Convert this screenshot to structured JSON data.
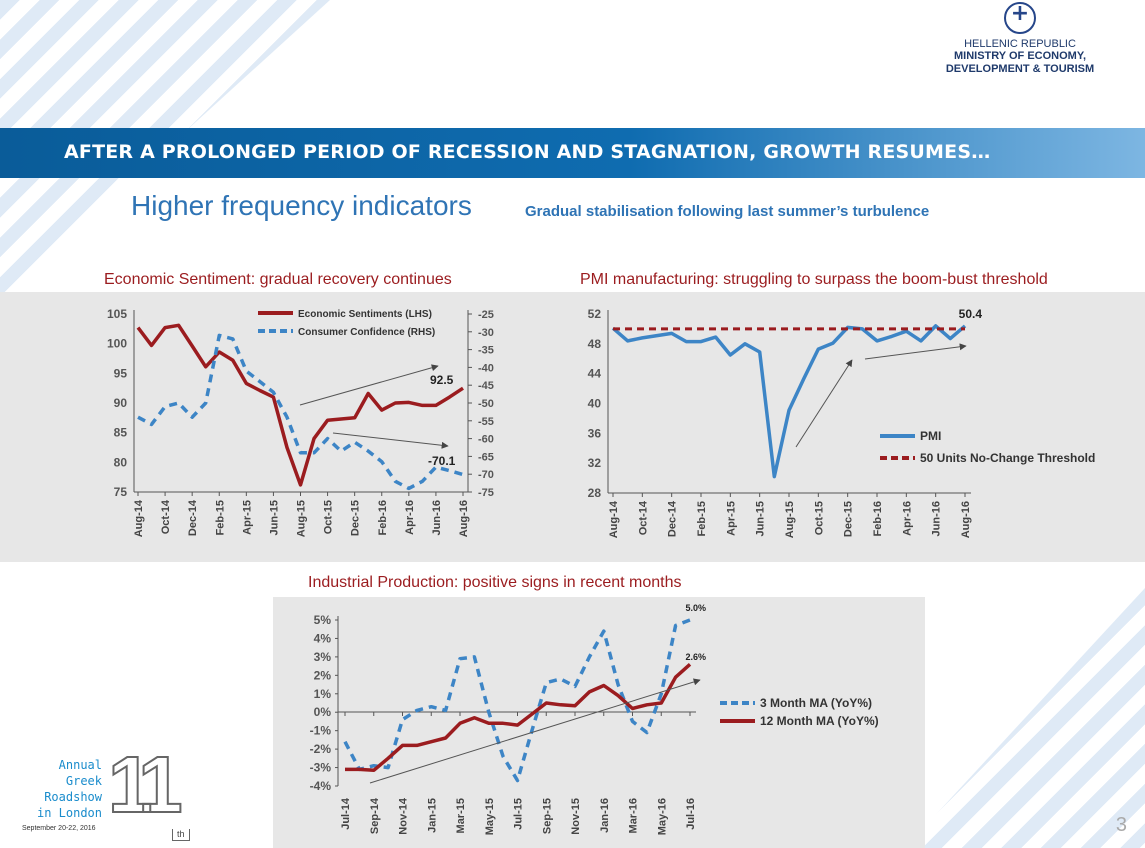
{
  "header": {
    "logo_line1": "HELLENIC REPUBLIC",
    "logo_line2": "MINISTRY OF ECONOMY,",
    "logo_line3": "DEVELOPMENT & TOURISM"
  },
  "banner": "AFTER A PROLONGED PERIOD OF RECESSION AND STAGNATION, GROWTH RESUMES…",
  "subtitle": "Higher frequency indicators",
  "subtitle_note": "Gradual stabilisation following last summer’s turbulence",
  "footer": {
    "event_lines": [
      "Annual",
      "Greek",
      "Roadshow",
      "in London"
    ],
    "event_date": "September 20-22, 2016",
    "edition": "11",
    "edition_suffix": "th",
    "page_number": "3"
  },
  "colors": {
    "red": "#9b1c1f",
    "blue": "#3d85c6",
    "banner": "#0a5c99"
  },
  "chart_data": [
    {
      "type": "line",
      "title": "Economic Sentiment: gradual recovery continues",
      "x": [
        "Aug-14",
        "Sep-14",
        "Oct-14",
        "Nov-14",
        "Dec-14",
        "Jan-15",
        "Feb-15",
        "Mar-15",
        "Apr-15",
        "May-15",
        "Jun-15",
        "Jul-15",
        "Aug-15",
        "Sep-15",
        "Oct-15",
        "Nov-15",
        "Dec-15",
        "Jan-16",
        "Feb-16",
        "Mar-16",
        "Apr-16",
        "May-16",
        "Jun-16",
        "Jul-16",
        "Aug-16"
      ],
      "xtick_labels": [
        "Aug-14",
        "Oct-14",
        "Dec-14",
        "Feb-15",
        "Apr-15",
        "Jun-15",
        "Aug-15",
        "Oct-15",
        "Dec-15",
        "Feb-16",
        "Apr-16",
        "Jun-16",
        "Aug-16"
      ],
      "ylim": [
        75,
        105
      ],
      "yticks": [
        75,
        80,
        85,
        90,
        95,
        100,
        105
      ],
      "y2lim": [
        -75,
        -25
      ],
      "y2ticks": [
        -75,
        -70,
        -65,
        -60,
        -55,
        -50,
        -45,
        -40,
        -35,
        -30,
        -25
      ],
      "legend": "top-right",
      "series": [
        {
          "name": "Economic Sentiments (LHS)",
          "axis": "left",
          "style": "solid",
          "color": "#9b1c1f",
          "values": [
            102.7,
            99.7,
            102.7,
            103.1,
            99.6,
            96.1,
            98.6,
            97.2,
            93.3,
            92.1,
            91.0,
            82.5,
            76.2,
            84.0,
            87.1,
            87.3,
            87.5,
            91.6,
            88.8,
            90.0,
            90.1,
            89.6,
            89.6,
            91.0,
            92.5
          ]
        },
        {
          "name": "Consumer Confidence (RHS)",
          "axis": "right",
          "style": "dashed",
          "color": "#3d85c6",
          "values": [
            -54,
            -56,
            -51,
            -50,
            -54,
            -50,
            -31,
            -32,
            -41,
            -44,
            -47,
            -54,
            -64,
            -64,
            -60,
            -63.5,
            -61,
            -63.5,
            -66.5,
            -72,
            -74,
            -72,
            -68,
            -69,
            -70.1
          ]
        }
      ],
      "annotations": [
        "92.5",
        "-70.1"
      ]
    },
    {
      "type": "line",
      "title": "PMI manufacturing: struggling to surpass the boom-bust threshold",
      "x": [
        "Aug-14",
        "Sep-14",
        "Oct-14",
        "Nov-14",
        "Dec-14",
        "Jan-15",
        "Feb-15",
        "Mar-15",
        "Apr-15",
        "May-15",
        "Jun-15",
        "Jul-15",
        "Aug-15",
        "Sep-15",
        "Oct-15",
        "Nov-15",
        "Dec-15",
        "Jan-16",
        "Feb-16",
        "Mar-16",
        "Apr-16",
        "May-16",
        "Jun-16",
        "Jul-16",
        "Aug-16"
      ],
      "xtick_labels": [
        "Aug-14",
        "Oct-14",
        "Dec-14",
        "Feb-15",
        "Apr-15",
        "Jun-15",
        "Aug-15",
        "Oct-15",
        "Dec-15",
        "Feb-16",
        "Apr-16",
        "Jun-16",
        "Aug-16"
      ],
      "ylim": [
        28,
        52
      ],
      "yticks": [
        28,
        32,
        36,
        40,
        44,
        48,
        52
      ],
      "legend": "bottom-right",
      "series": [
        {
          "name": "PMI",
          "style": "solid",
          "color": "#3d85c6",
          "values": [
            50.1,
            48.4,
            48.8,
            49.1,
            49.4,
            48.3,
            48.3,
            48.9,
            46.5,
            48.0,
            46.9,
            30.2,
            39.1,
            43.3,
            47.3,
            48.1,
            50.2,
            50.0,
            48.4,
            49.0,
            49.7,
            48.4,
            50.4,
            48.7,
            50.4
          ]
        },
        {
          "name": "50 Units No-Change Threshold",
          "style": "dashed",
          "color": "#9b1c1f",
          "values": [
            50,
            50,
            50,
            50,
            50,
            50,
            50,
            50,
            50,
            50,
            50,
            50,
            50,
            50,
            50,
            50,
            50,
            50,
            50,
            50,
            50,
            50,
            50,
            50,
            50
          ]
        }
      ],
      "annotations": [
        "50.4"
      ]
    },
    {
      "type": "line",
      "title": "Industrial Production: positive signs in recent months",
      "x": [
        "Jul-14",
        "Aug-14",
        "Sep-14",
        "Oct-14",
        "Nov-14",
        "Dec-14",
        "Jan-15",
        "Feb-15",
        "Mar-15",
        "Apr-15",
        "May-15",
        "Jun-15",
        "Jul-15",
        "Aug-15",
        "Sep-15",
        "Oct-15",
        "Nov-15",
        "Dec-15",
        "Jan-16",
        "Feb-16",
        "Mar-16",
        "Apr-16",
        "May-16",
        "Jun-16",
        "Jul-16"
      ],
      "xtick_labels": [
        "Jul-14",
        "Sep-14",
        "Nov-14",
        "Jan-15",
        "Mar-15",
        "May-15",
        "Jul-15",
        "Sep-15",
        "Nov-15",
        "Jan-16",
        "Mar-16",
        "May-16",
        "Jul-16"
      ],
      "ylim": [
        -4,
        5
      ],
      "yticks": [
        "-4%",
        "-3%",
        "-2%",
        "-1%",
        "0%",
        "1%",
        "2%",
        "3%",
        "4%",
        "5%"
      ],
      "legend": "right",
      "series": [
        {
          "name": "3 Month MA (YoY%)",
          "style": "dashed",
          "color": "#3d85c6",
          "values": [
            -1.6,
            -3.1,
            -2.9,
            -3.0,
            -0.4,
            0.1,
            0.3,
            0.1,
            2.9,
            3.0,
            0.0,
            -2.4,
            -3.7,
            -1.0,
            1.6,
            1.8,
            1.4,
            3.0,
            4.4,
            1.5,
            -0.5,
            -1.1,
            1.0,
            4.7,
            5.0
          ]
        },
        {
          "name": "12 Month MA (YoY%)",
          "style": "solid",
          "color": "#9b1c1f",
          "values": [
            -3.1,
            -3.1,
            -3.15,
            -2.5,
            -1.8,
            -1.8,
            -1.6,
            -1.4,
            -0.6,
            -0.3,
            -0.6,
            -0.6,
            -0.7,
            -0.1,
            0.5,
            0.4,
            0.35,
            1.1,
            1.45,
            0.9,
            0.2,
            0.4,
            0.5,
            1.9,
            2.6
          ]
        }
      ],
      "annotations": [
        "5.0%",
        "2.6%"
      ]
    }
  ]
}
